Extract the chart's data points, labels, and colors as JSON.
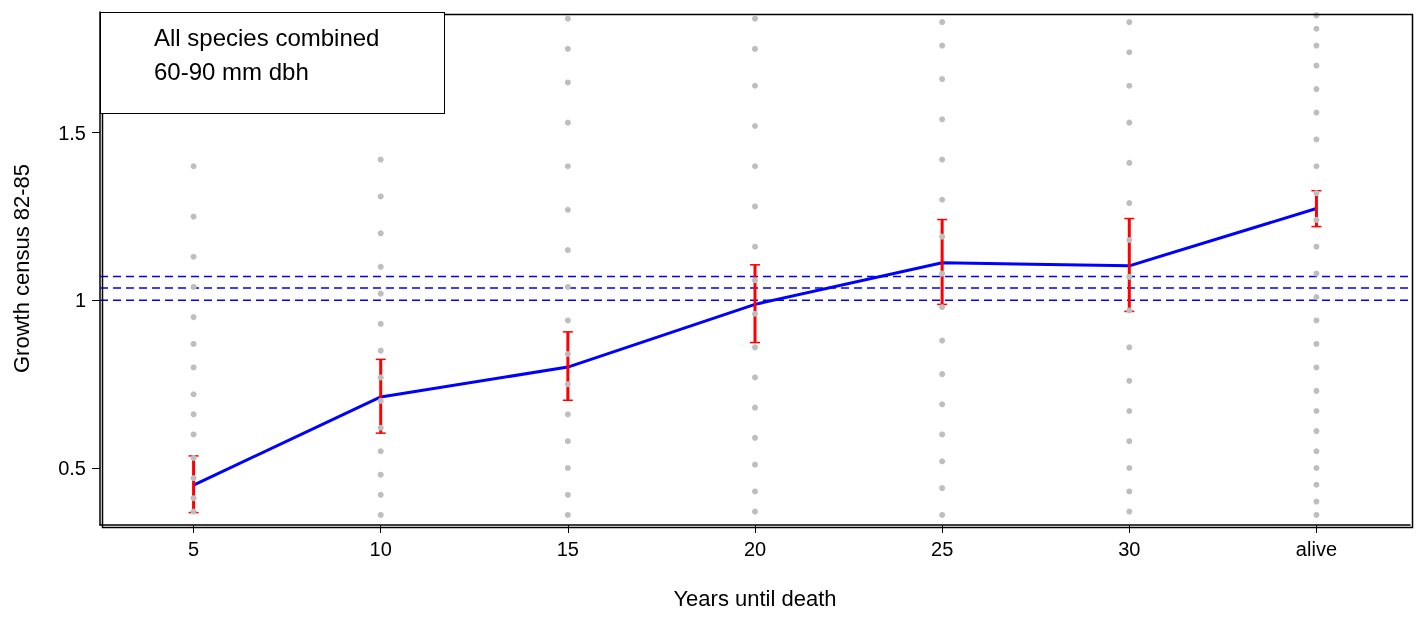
{
  "chart_data": {
    "type": "line",
    "xlabel": "Years until death",
    "ylabel": "Growth census 82-85",
    "annotations": [
      "All species combined",
      "60-90 mm dbh"
    ],
    "categories": [
      "5",
      "10",
      "15",
      "20",
      "25",
      "30",
      "alive"
    ],
    "ylim": [
      0.33,
      1.86
    ],
    "yticks": [
      0.5,
      1,
      1.5
    ],
    "grid": false,
    "marker": "none",
    "line_style": "solid",
    "ref_lines": [
      {
        "axis": "y",
        "value": 1.0,
        "color": "#0000ff",
        "line_style": "dashed"
      },
      {
        "axis": "y",
        "value": 1.037,
        "color": "#0000ff",
        "line_style": "dashed"
      },
      {
        "axis": "y",
        "value": 1.071,
        "color": "#0000ff",
        "line_style": "dashed"
      }
    ],
    "series": [
      {
        "type": "scatter",
        "color": "#bebebe",
        "marker": "circle",
        "x": [
          "5",
          "5",
          "5",
          "5",
          "5",
          "5",
          "5",
          "5",
          "5",
          "5",
          "5",
          "5",
          "5",
          "5",
          "10",
          "10",
          "10",
          "10",
          "10",
          "10",
          "10",
          "10",
          "10",
          "10",
          "10",
          "10",
          "10",
          "10",
          "15",
          "15",
          "15",
          "15",
          "15",
          "15",
          "15",
          "15",
          "15",
          "15",
          "15",
          "15",
          "15",
          "15",
          "15",
          "15",
          "20",
          "20",
          "20",
          "20",
          "20",
          "20",
          "20",
          "20",
          "20",
          "20",
          "20",
          "20",
          "20",
          "20",
          "20",
          "20",
          "25",
          "25",
          "25",
          "25",
          "25",
          "25",
          "25",
          "25",
          "25",
          "25",
          "25",
          "25",
          "25",
          "25",
          "25",
          "25",
          "30",
          "30",
          "30",
          "30",
          "30",
          "30",
          "30",
          "30",
          "30",
          "30",
          "30",
          "30",
          "30",
          "30",
          "30",
          "30",
          "alive",
          "alive",
          "alive",
          "alive",
          "alive",
          "alive",
          "alive",
          "alive",
          "alive",
          "alive",
          "alive",
          "alive",
          "alive",
          "alive",
          "alive",
          "alive",
          "alive",
          "alive",
          "alive",
          "alive",
          "alive",
          "alive",
          "alive",
          "alive"
        ],
        "values": [
          0.37,
          0.41,
          0.47,
          0.53,
          0.6,
          0.66,
          0.72,
          0.8,
          0.87,
          0.95,
          1.04,
          1.13,
          1.25,
          1.4,
          0.36,
          0.42,
          0.48,
          0.55,
          0.62,
          0.7,
          0.77,
          0.85,
          0.93,
          1.02,
          1.1,
          1.2,
          1.31,
          1.42,
          0.36,
          0.42,
          0.5,
          0.58,
          0.66,
          0.75,
          0.84,
          0.94,
          1.04,
          1.15,
          1.27,
          1.4,
          1.53,
          1.65,
          1.75,
          1.84,
          0.37,
          0.43,
          0.51,
          0.59,
          0.68,
          0.77,
          0.86,
          0.96,
          1.06,
          1.16,
          1.28,
          1.4,
          1.52,
          1.64,
          1.75,
          1.84,
          0.36,
          0.44,
          0.52,
          0.6,
          0.69,
          0.78,
          0.88,
          0.98,
          1.08,
          1.19,
          1.3,
          1.42,
          1.54,
          1.66,
          1.76,
          1.83,
          0.37,
          0.43,
          0.5,
          0.58,
          0.67,
          0.76,
          0.86,
          0.97,
          1.07,
          1.18,
          1.29,
          1.41,
          1.53,
          1.64,
          1.74,
          1.83,
          0.36,
          0.4,
          0.45,
          0.5,
          0.55,
          0.61,
          0.67,
          0.73,
          0.8,
          0.87,
          0.94,
          1.01,
          1.08,
          1.16,
          1.24,
          1.32,
          1.4,
          1.48,
          1.56,
          1.63,
          1.7,
          1.76,
          1.81,
          1.85
        ]
      },
      {
        "color": "#0000ff",
        "values": [
          0.449,
          0.712,
          0.801,
          0.988,
          1.112,
          1.103,
          1.274
        ],
        "errors": [
          [
            0.367,
            0.536
          ],
          [
            0.604,
            0.824
          ],
          [
            0.702,
            0.906
          ],
          [
            0.874,
            1.106
          ],
          [
            0.988,
            1.241
          ],
          [
            0.967,
            1.244
          ],
          [
            1.22,
            1.327
          ]
        ]
      }
    ]
  }
}
